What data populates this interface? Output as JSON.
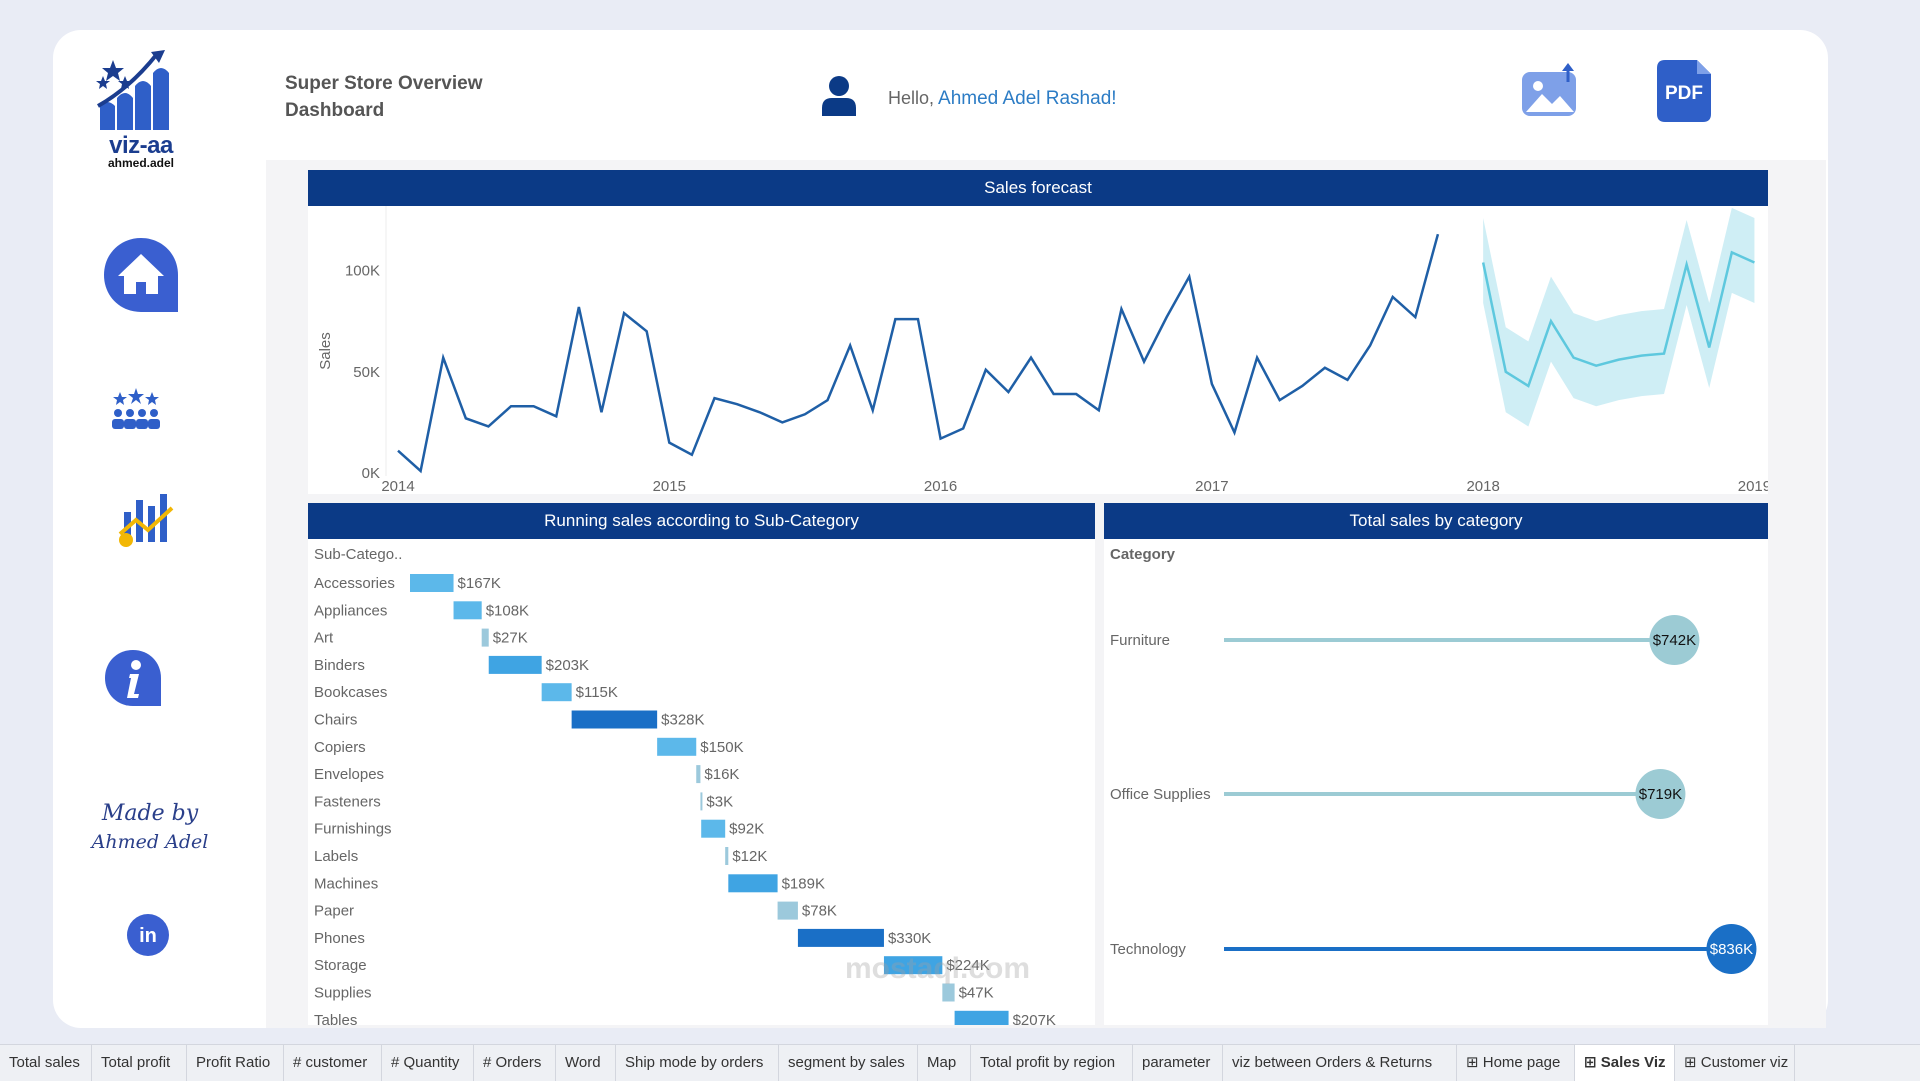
{
  "brand": {
    "name": "viz-aa",
    "sub": "ahmed.adel"
  },
  "header": {
    "title_line1": "Super Store Overview",
    "title_line2": "Dashboard",
    "greeting": "Hello,",
    "user_name": "Ahmed Adel Rashad!",
    "pdf_label": "PDF"
  },
  "sidebar": {
    "items": [
      "home-icon",
      "customers-icon",
      "sales-chart-icon",
      "info-icon"
    ],
    "made_by_line1": "Made by",
    "made_by_line2": "Ahmed Adel",
    "linkedin_label": "in"
  },
  "forecast": {
    "title": "Sales forecast",
    "ylabel": "Sales",
    "yticks": [
      "100K",
      "50K",
      "0K"
    ],
    "xticks": [
      "2014",
      "2015",
      "2016",
      "2017",
      "2018",
      "2019"
    ]
  },
  "running": {
    "title": "Running sales according to Sub-Category",
    "column_header": "Sub-Catego..",
    "rows": [
      {
        "name": "Accessories",
        "label": "$167K"
      },
      {
        "name": "Appliances",
        "label": "$108K"
      },
      {
        "name": "Art",
        "label": "$27K"
      },
      {
        "name": "Binders",
        "label": "$203K"
      },
      {
        "name": "Bookcases",
        "label": "$115K"
      },
      {
        "name": "Chairs",
        "label": "$328K"
      },
      {
        "name": "Copiers",
        "label": "$150K"
      },
      {
        "name": "Envelopes",
        "label": "$16K"
      },
      {
        "name": "Fasteners",
        "label": "$3K"
      },
      {
        "name": "Furnishings",
        "label": "$92K"
      },
      {
        "name": "Labels",
        "label": "$12K"
      },
      {
        "name": "Machines",
        "label": "$189K"
      },
      {
        "name": "Paper",
        "label": "$78K"
      },
      {
        "name": "Phones",
        "label": "$330K"
      },
      {
        "name": "Storage",
        "label": "$224K"
      },
      {
        "name": "Supplies",
        "label": "$47K"
      },
      {
        "name": "Tables",
        "label": "$207K"
      }
    ]
  },
  "category": {
    "title": "Total sales by category",
    "column_header": "Category",
    "rows": [
      {
        "name": "Furniture",
        "label": "$742K"
      },
      {
        "name": "Office Supplies",
        "label": "$719K"
      },
      {
        "name": "Technology",
        "label": "$836K"
      }
    ]
  },
  "chart_data": [
    {
      "type": "line",
      "title": "Sales forecast",
      "ylabel": "Sales",
      "ylim": [
        0,
        120000
      ],
      "xlim": [
        "2014-01",
        "2019-01"
      ],
      "series": [
        {
          "values": [
            [
              "2014-01",
              11000
            ],
            [
              "2014-02",
              1000
            ],
            [
              "2014-03",
              57000
            ],
            [
              "2014-04",
              27000
            ],
            [
              "2014-05",
              23000
            ],
            [
              "2014-06",
              33000
            ],
            [
              "2014-07",
              33000
            ],
            [
              "2014-08",
              28000
            ],
            [
              "2014-09",
              82000
            ],
            [
              "2014-10",
              30000
            ],
            [
              "2014-11",
              79000
            ],
            [
              "2014-12",
              70000
            ],
            [
              "2015-01",
              15000
            ],
            [
              "2015-02",
              9000
            ],
            [
              "2015-03",
              37000
            ],
            [
              "2015-04",
              34000
            ],
            [
              "2015-05",
              30000
            ],
            [
              "2015-06",
              25000
            ],
            [
              "2015-07",
              29000
            ],
            [
              "2015-08",
              36000
            ],
            [
              "2015-09",
              63000
            ],
            [
              "2015-10",
              31000
            ],
            [
              "2015-11",
              76000
            ],
            [
              "2015-12",
              76000
            ],
            [
              "2016-01",
              17000
            ],
            [
              "2016-02",
              22000
            ],
            [
              "2016-03",
              51000
            ],
            [
              "2016-04",
              40000
            ],
            [
              "2016-05",
              57000
            ],
            [
              "2016-06",
              39000
            ],
            [
              "2016-07",
              39000
            ],
            [
              "2016-08",
              31000
            ],
            [
              "2016-09",
              81000
            ],
            [
              "2016-10",
              55000
            ],
            [
              "2016-11",
              77000
            ],
            [
              "2016-12",
              97000
            ],
            [
              "2017-01",
              44000
            ],
            [
              "2017-02",
              20000
            ],
            [
              "2017-03",
              57000
            ],
            [
              "2017-04",
              36000
            ],
            [
              "2017-05",
              43000
            ],
            [
              "2017-06",
              52000
            ],
            [
              "2017-07",
              46000
            ],
            [
              "2017-08",
              63000
            ],
            [
              "2017-09",
              87000
            ],
            [
              "2017-10",
              77000
            ],
            [
              "2017-11",
              118000
            ]
          ]
        },
        {
          "values": [
            [
              "2018-01",
              104000
            ],
            [
              "2018-02",
              50000
            ],
            [
              "2018-03",
              43000
            ],
            [
              "2018-04",
              75000
            ],
            [
              "2018-05",
              57000
            ],
            [
              "2018-06",
              53000
            ],
            [
              "2018-07",
              56000
            ],
            [
              "2018-08",
              58000
            ],
            [
              "2018-09",
              59000
            ],
            [
              "2018-10",
              103000
            ],
            [
              "2018-11",
              62000
            ],
            [
              "2018-12",
              109000
            ],
            [
              "2019-01",
              104000
            ]
          ]
        }
      ]
    },
    {
      "type": "bar",
      "title": "Running sales according to Sub-Category",
      "categories": [
        "Accessories",
        "Appliances",
        "Art",
        "Binders",
        "Bookcases",
        "Chairs",
        "Copiers",
        "Envelopes",
        "Fasteners",
        "Furnishings",
        "Labels",
        "Machines",
        "Paper",
        "Phones",
        "Storage",
        "Supplies",
        "Tables"
      ],
      "values": [
        167,
        108,
        27,
        203,
        115,
        328,
        150,
        16,
        3,
        92,
        12,
        189,
        78,
        330,
        224,
        47,
        207
      ]
    },
    {
      "type": "scatter",
      "title": "Total sales by category",
      "categories": [
        "Furniture",
        "Office Supplies",
        "Technology"
      ],
      "values": [
        742,
        719,
        836
      ]
    }
  ],
  "tabs": [
    {
      "label": "Total sales"
    },
    {
      "label": "Total profit"
    },
    {
      "label": "Profit Ratio"
    },
    {
      "label": "# customer"
    },
    {
      "label": "# Quantity"
    },
    {
      "label": "# Orders"
    },
    {
      "label": "Word"
    },
    {
      "label": "Ship mode by orders"
    },
    {
      "label": "segment by sales"
    },
    {
      "label": "Map"
    },
    {
      "label": "Total profit by region"
    },
    {
      "label": "parameter"
    },
    {
      "label": "viz between Orders & Returns"
    },
    {
      "label": "⊞ Home page"
    },
    {
      "label": "⊞ Sales Viz"
    },
    {
      "label": "⊞ Customer viz"
    }
  ],
  "watermark": "mostaql.com",
  "colors": {
    "brand": "#0b3a86",
    "line": "#1f5fa6",
    "forecast": "#5ec8de"
  }
}
